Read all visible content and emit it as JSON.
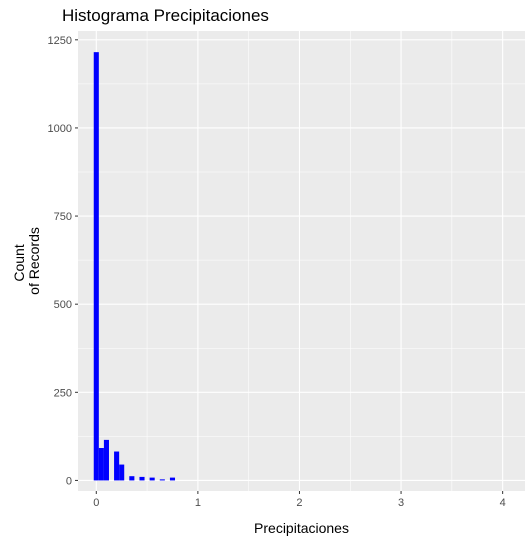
{
  "chart_data": {
    "type": "bar",
    "title": "Histograma Precipitaciones",
    "xlabel": "Precipitaciones",
    "ylabel_lines": [
      "Count",
      "of Records"
    ],
    "xlim": [
      -0.18,
      4.22
    ],
    "ylim": [
      -30,
      1275
    ],
    "x_ticks": [
      0,
      1,
      2,
      3,
      4
    ],
    "x_tick_labels": [
      "0",
      "1",
      "2",
      "3",
      "4"
    ],
    "y_ticks": [
      0,
      250,
      500,
      750,
      1000,
      1250
    ],
    "y_tick_labels": [
      "0",
      "250",
      "500",
      "750",
      "1000",
      "1250"
    ],
    "bin_width": 0.05,
    "bin_starts": [
      -0.025,
      0.025,
      0.075,
      0.125,
      0.175,
      0.225,
      0.275,
      0.325,
      0.375,
      0.425,
      0.475,
      0.525,
      0.575,
      0.625,
      0.675,
      0.725,
      0.775,
      0.825
    ],
    "counts": [
      1215,
      92,
      115,
      0,
      82,
      45,
      0,
      12,
      0,
      10,
      0,
      8,
      0,
      3,
      0,
      8,
      0,
      0
    ],
    "bar_color": "#0000ff",
    "panel_background": "#ebebeb",
    "grid_color": "#ffffff",
    "grid": true
  }
}
